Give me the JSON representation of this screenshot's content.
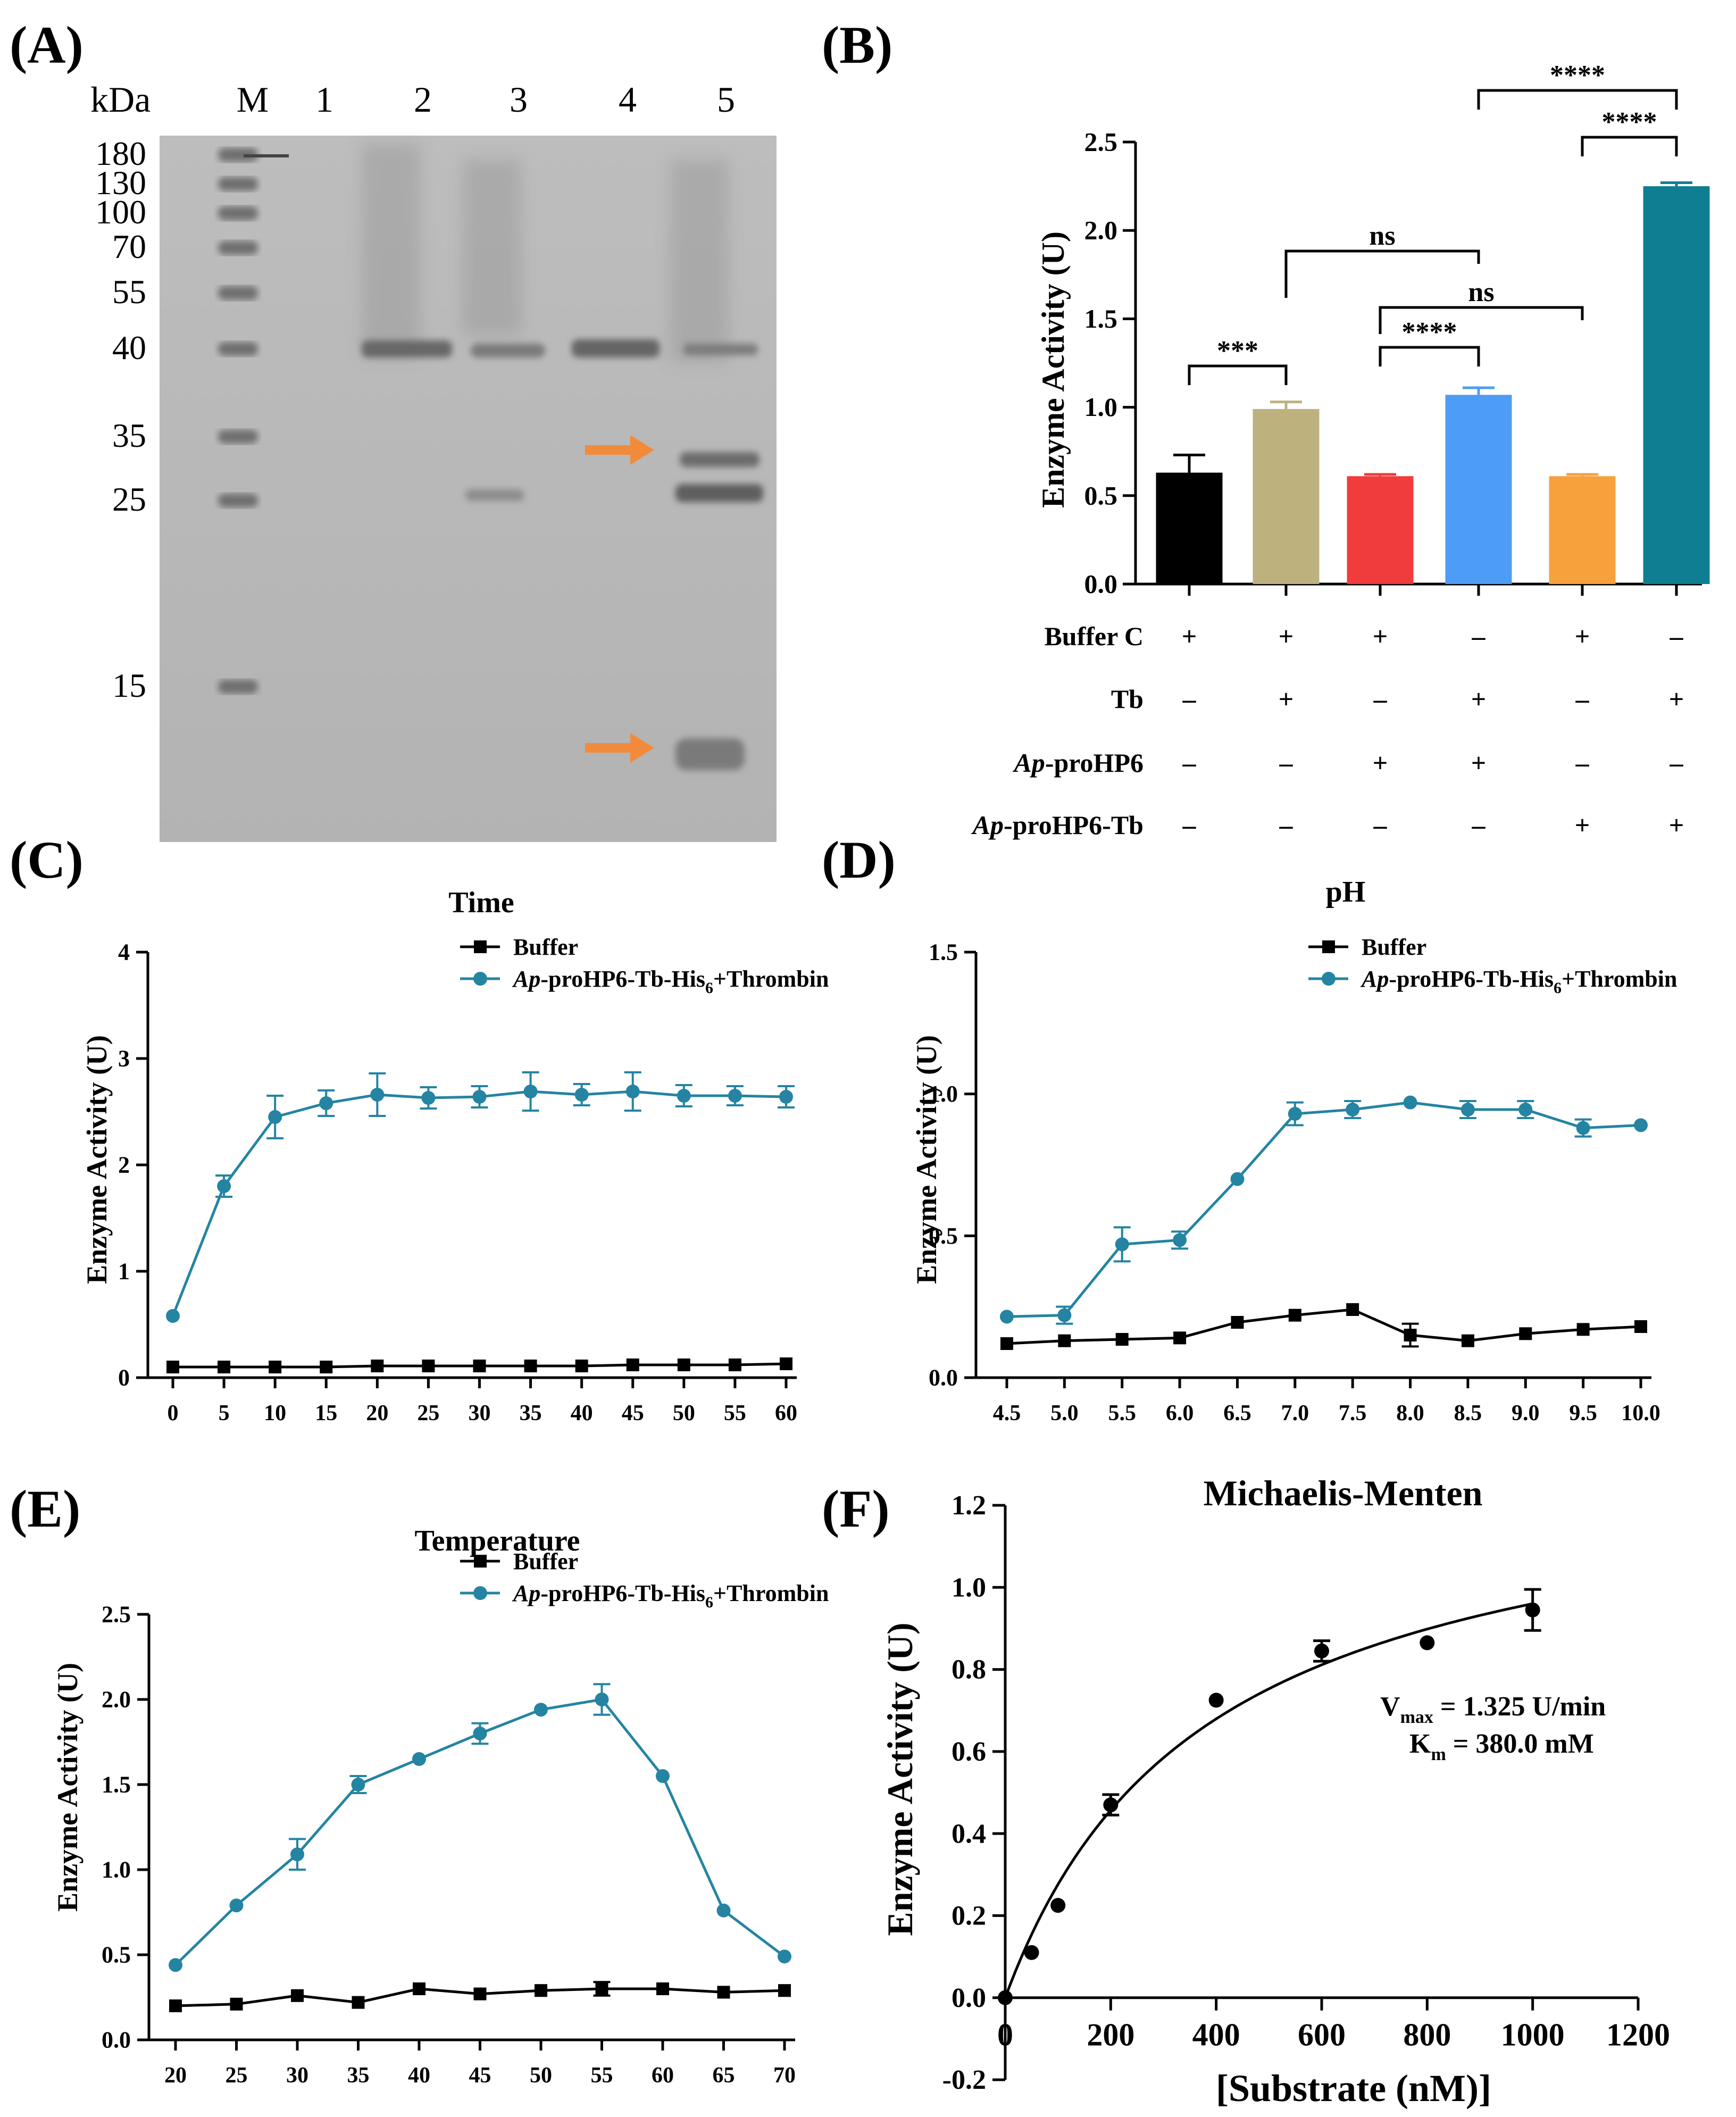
{
  "figure": {
    "panels": {
      "A": "(A)",
      "B": "(B)",
      "C": "(C)",
      "D": "(D)",
      "E": "(E)",
      "F": "(F)"
    }
  },
  "chart_data": [
    {
      "panel": "A",
      "type": "gel",
      "unit_label": "kDa",
      "lane_labels": [
        "M",
        "1",
        "2",
        "3",
        "4",
        "5"
      ],
      "marker_kda": [
        "180",
        "130",
        "100",
        "70",
        "55",
        "40",
        "35",
        "25",
        "15"
      ],
      "arrows": [
        "band-lane5-upper",
        "band-lane5-lower"
      ],
      "colors": {
        "gel": "#b8b8b8",
        "band": "#6f6f6f",
        "arrow": "#f28a3c"
      }
    },
    {
      "panel": "B",
      "type": "bar",
      "title": "",
      "ylabel": "Enzyme Activity (U)",
      "ylim": [
        0,
        2.5
      ],
      "yticks": [
        "0.0",
        "0.5",
        "1.0",
        "1.5",
        "2.0",
        "2.5"
      ],
      "values": [
        0.63,
        0.99,
        0.61,
        1.07,
        0.61,
        2.25
      ],
      "errors": [
        0.1,
        0.04,
        0.01,
        0.04,
        0.01,
        0.02
      ],
      "colors": [
        "#000000",
        "#bdb27d",
        "#f03c3c",
        "#4d9cf5",
        "#f7a13c",
        "#0f7e93"
      ],
      "conditions": [
        {
          "label": "Buffer C",
          "signs": [
            "+",
            "+",
            "+",
            "–",
            "+",
            "–"
          ]
        },
        {
          "label": "Tb",
          "signs": [
            "–",
            "+",
            "–",
            "+",
            "–",
            "+"
          ]
        },
        {
          "label_prefix": "Ap",
          "label_suffix": "-proHP6",
          "signs": [
            "–",
            "–",
            "+",
            "+",
            "–",
            "–"
          ]
        },
        {
          "label_prefix": "Ap",
          "label_suffix": "-proHP6-Tb",
          "signs": [
            "–",
            "–",
            "–",
            "–",
            "+",
            "+"
          ]
        }
      ],
      "significance": [
        {
          "from": 0,
          "to": 1,
          "label": "***"
        },
        {
          "from": 1,
          "to": 3,
          "label": "ns"
        },
        {
          "from": 2,
          "to": 3,
          "label": "****"
        },
        {
          "from": 2,
          "to": 4,
          "label": "ns"
        },
        {
          "from": 4,
          "to": 5,
          "label": "****"
        },
        {
          "from": 3,
          "to": 5,
          "label": "****"
        }
      ]
    },
    {
      "panel": "C",
      "type": "line",
      "title": "Time",
      "ylabel": "Enzyme Activity (U)",
      "xlabel": "",
      "ylim": [
        0,
        4
      ],
      "yticks": [
        "0",
        "1",
        "2",
        "3",
        "4"
      ],
      "x": [
        0,
        5,
        10,
        15,
        20,
        25,
        30,
        35,
        40,
        45,
        50,
        55,
        60
      ],
      "xticks": [
        "0",
        "5",
        "10",
        "15",
        "20",
        "25",
        "30",
        "35",
        "40",
        "45",
        "50",
        "55",
        "60"
      ],
      "series": [
        {
          "name": "Buffer",
          "marker": "square",
          "color": "#000000",
          "values": [
            0.1,
            0.1,
            0.1,
            0.1,
            0.11,
            0.11,
            0.11,
            0.11,
            0.11,
            0.12,
            0.12,
            0.12,
            0.13
          ],
          "errors": [
            0.02,
            0.02,
            0.02,
            0.02,
            0.02,
            0.02,
            0.02,
            0.02,
            0.02,
            0.02,
            0.02,
            0.02,
            0.02
          ]
        },
        {
          "name_prefix": "Ap",
          "name_suffix": "-proHP6-Tb-His",
          "name_sub": "6",
          "name_tail": "+Thrombin",
          "marker": "circle",
          "color": "#2484a2",
          "values": [
            0.58,
            1.8,
            2.45,
            2.58,
            2.66,
            2.63,
            2.64,
            2.69,
            2.66,
            2.69,
            2.65,
            2.65,
            2.64
          ],
          "errors": [
            0.03,
            0.1,
            0.2,
            0.12,
            0.2,
            0.1,
            0.1,
            0.18,
            0.1,
            0.18,
            0.1,
            0.09,
            0.1
          ]
        }
      ]
    },
    {
      "panel": "D",
      "type": "line",
      "title": "pH",
      "ylabel": "Enzyme Activity (U)",
      "xlabel": "",
      "ylim": [
        0,
        1.5
      ],
      "yticks": [
        "0.0",
        "0.5",
        "1.0",
        "1.5"
      ],
      "x": [
        4.5,
        5.0,
        5.5,
        6.0,
        6.5,
        7.0,
        7.5,
        8.0,
        8.5,
        9.0,
        9.5,
        10.0
      ],
      "xticks": [
        "4.5",
        "5.0",
        "5.5",
        "6.0",
        "6.5",
        "7.0",
        "7.5",
        "8.0",
        "8.5",
        "9.0",
        "9.5",
        "10.0"
      ],
      "series": [
        {
          "name": "Buffer",
          "marker": "square",
          "color": "#000000",
          "values": [
            0.12,
            0.13,
            0.135,
            0.14,
            0.195,
            0.22,
            0.24,
            0.15,
            0.13,
            0.155,
            0.17,
            0.18
          ],
          "errors": [
            0.01,
            0.01,
            0.01,
            0.01,
            0.01,
            0.01,
            0.01,
            0.04,
            0.01,
            0.02,
            0.01,
            0.01
          ]
        },
        {
          "name_prefix": "Ap",
          "name_suffix": "-proHP6-Tb-His",
          "name_sub": "6",
          "name_tail": "+Thrombin",
          "marker": "circle",
          "color": "#2484a2",
          "values": [
            0.215,
            0.22,
            0.47,
            0.485,
            0.7,
            0.93,
            0.945,
            0.97,
            0.945,
            0.945,
            0.88,
            0.89
          ],
          "errors": [
            0.01,
            0.03,
            0.06,
            0.03,
            0.01,
            0.04,
            0.03,
            0.01,
            0.03,
            0.03,
            0.03,
            0.01
          ]
        }
      ]
    },
    {
      "panel": "E",
      "type": "line",
      "title": "Temperature",
      "ylabel": "Enzyme Activity (U)",
      "xlabel": "",
      "ylim": [
        0,
        2.5
      ],
      "yticks": [
        "0.0",
        "0.5",
        "1.0",
        "1.5",
        "2.0",
        "2.5"
      ],
      "x": [
        20,
        25,
        30,
        35,
        40,
        45,
        50,
        55,
        60,
        65,
        70
      ],
      "xticks": [
        "20",
        "25",
        "30",
        "35",
        "40",
        "45",
        "50",
        "55",
        "60",
        "65",
        "70"
      ],
      "series": [
        {
          "name": "Buffer",
          "marker": "square",
          "color": "#000000",
          "values": [
            0.2,
            0.21,
            0.26,
            0.22,
            0.3,
            0.27,
            0.29,
            0.3,
            0.3,
            0.28,
            0.29
          ],
          "errors": [
            0.01,
            0.01,
            0.02,
            0.01,
            0.02,
            0.01,
            0.02,
            0.04,
            0.02,
            0.02,
            0.03
          ]
        },
        {
          "name_prefix": "Ap",
          "name_suffix": "-proHP6-Tb-His",
          "name_sub": "6",
          "name_tail": "+Thrombin",
          "marker": "circle",
          "color": "#2484a2",
          "values": [
            0.44,
            0.79,
            1.09,
            1.5,
            1.65,
            1.8,
            1.94,
            2.0,
            1.55,
            0.76,
            0.49
          ],
          "errors": [
            0.01,
            0.01,
            0.09,
            0.05,
            0.01,
            0.06,
            0.01,
            0.09,
            0.01,
            0.03,
            0.01
          ]
        }
      ]
    },
    {
      "panel": "F",
      "type": "scatter",
      "title": "Michaelis-Menten",
      "ylabel": "Enzyme Activity (U)",
      "xlabel": "[Substrate (nM)]",
      "xlim": [
        0,
        1200
      ],
      "ylim": [
        -0.2,
        1.2
      ],
      "xticks": [
        "0",
        "200",
        "400",
        "600",
        "800",
        "1000",
        "1200"
      ],
      "yticks": [
        "-0.2",
        "0.0",
        "0.2",
        "0.4",
        "0.6",
        "0.8",
        "1.0",
        "1.2"
      ],
      "x": [
        0,
        50,
        100,
        200,
        400,
        600,
        800,
        1000
      ],
      "values": [
        0.0,
        0.11,
        0.225,
        0.47,
        0.725,
        0.845,
        0.865,
        0.945
      ],
      "errors": [
        0.0,
        0.0,
        0.0,
        0.025,
        0.0,
        0.025,
        0.0,
        0.05
      ],
      "fit": {
        "vmax": 1.325,
        "km": 380.0
      },
      "annotation_vmax_label": "V",
      "annotation_vmax_sub": "max",
      "annotation_vmax_value": " = 1.325 U/min",
      "annotation_km_label": "K",
      "annotation_km_sub": "m",
      "annotation_km_value": " = 380.0 mM"
    }
  ]
}
